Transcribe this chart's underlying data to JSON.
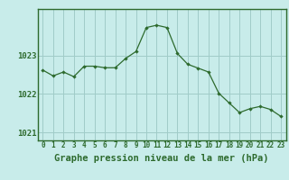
{
  "hours": [
    0,
    1,
    2,
    3,
    4,
    5,
    6,
    7,
    8,
    9,
    10,
    11,
    12,
    13,
    14,
    15,
    16,
    17,
    18,
    19,
    20,
    21,
    22,
    23
  ],
  "pressure": [
    1022.62,
    1022.47,
    1022.57,
    1022.45,
    1022.72,
    1022.72,
    1022.68,
    1022.68,
    1022.92,
    1023.1,
    1023.72,
    1023.78,
    1023.72,
    1023.05,
    1022.77,
    1022.67,
    1022.57,
    1022.02,
    1021.77,
    1021.52,
    1021.62,
    1021.68,
    1021.6,
    1021.42
  ],
  "line_color": "#2d6a2d",
  "marker_color": "#2d6a2d",
  "bg_color": "#c8ecea",
  "plot_bg_color": "#c8ecea",
  "grid_color": "#a0ccc8",
  "axis_color": "#2d6a2d",
  "spine_color": "#2d6a2d",
  "xlabel_label": "Graphe pression niveau de la mer (hPa)",
  "yticks": [
    1021,
    1022,
    1023
  ],
  "ylim": [
    1020.8,
    1024.2
  ],
  "xlim": [
    -0.5,
    23.5
  ],
  "xtick_fontsize": 5.5,
  "ytick_fontsize": 6.5,
  "label_fontsize": 7.5
}
